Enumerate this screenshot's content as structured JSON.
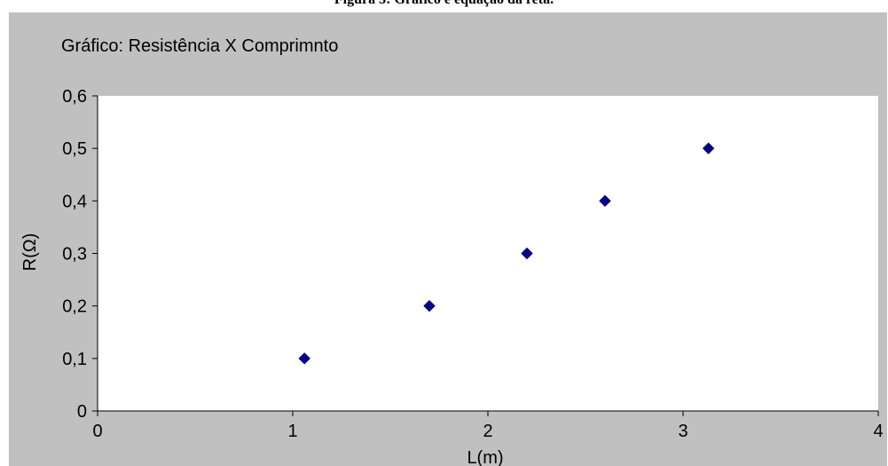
{
  "figure_caption": "Figura 3: Gráfico e equação da reta.",
  "chart_data": {
    "type": "scatter",
    "title": "Gráfico: Resistência X Comprimnto",
    "xlabel": "L(m)",
    "ylabel": "R(Ω)",
    "xlim": [
      0,
      4
    ],
    "ylim": [
      0,
      0.6
    ],
    "x_ticks": [
      "0",
      "1",
      "2",
      "3",
      "4"
    ],
    "y_ticks": [
      "0",
      "0,1",
      "0,2",
      "0,3",
      "0,4",
      "0,5",
      "0,6"
    ],
    "grid": false,
    "legend": "none",
    "marker": "diamond",
    "colors": {
      "chart_background": "#c0c0c0",
      "plot_background": "#ffffff",
      "marker": "#000080",
      "axis": "#000000"
    },
    "points": [
      {
        "x": 1.06,
        "y": 0.1
      },
      {
        "x": 1.7,
        "y": 0.2
      },
      {
        "x": 2.2,
        "y": 0.3
      },
      {
        "x": 2.6,
        "y": 0.4
      },
      {
        "x": 3.13,
        "y": 0.5
      }
    ]
  }
}
